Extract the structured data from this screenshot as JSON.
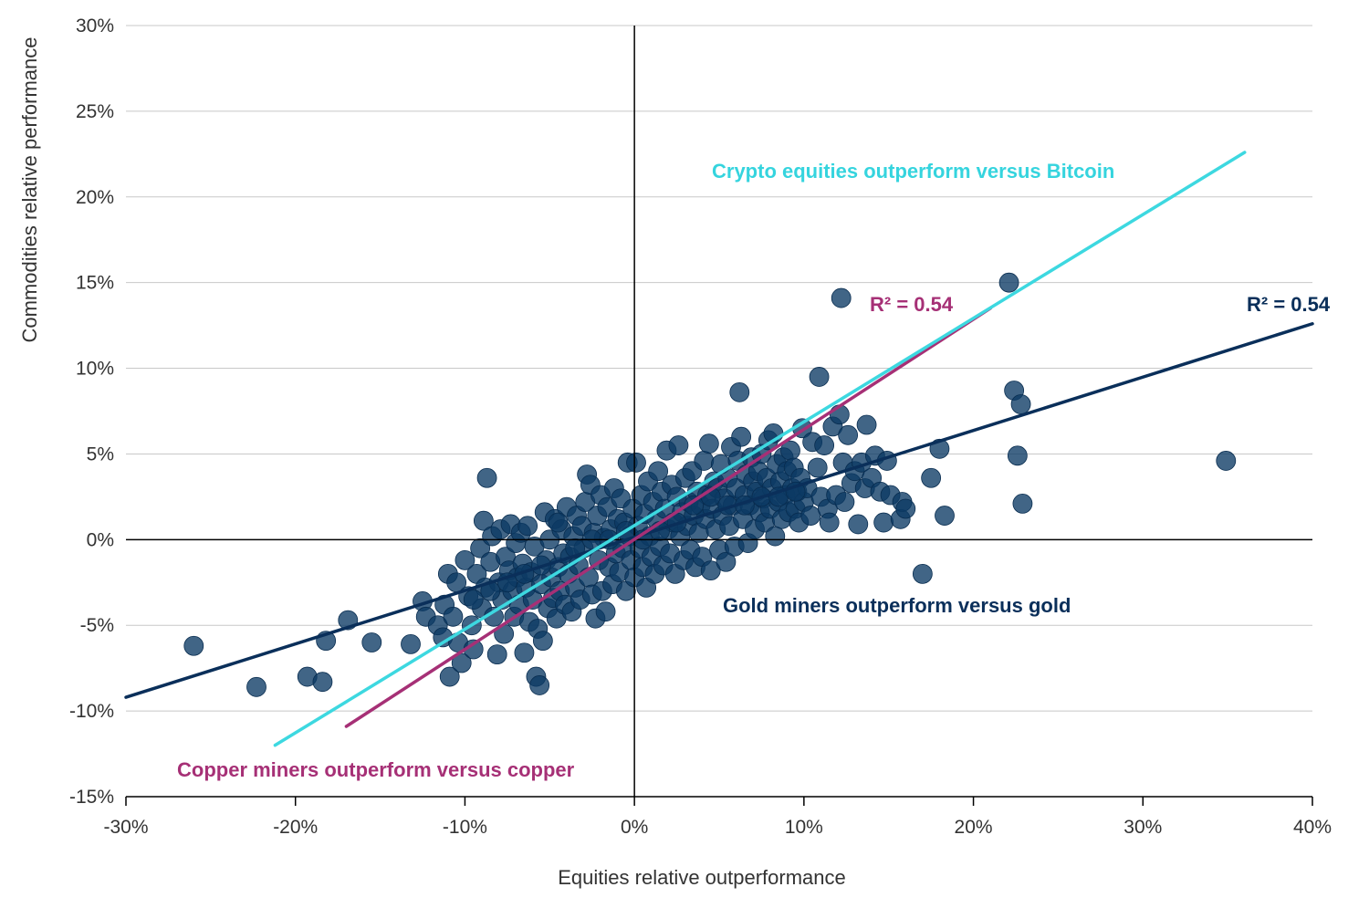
{
  "chart_data": {
    "type": "scatter",
    "xlabel": "Equities relative outperformance",
    "ylabel": "Commodities relative performance",
    "xlim": [
      -0.3,
      0.4
    ],
    "ylim": [
      -0.15,
      0.3
    ],
    "x_ticks": [
      {
        "value": -0.3,
        "label": "-30%"
      },
      {
        "value": -0.2,
        "label": "-20%"
      },
      {
        "value": -0.1,
        "label": "-10%"
      },
      {
        "value": 0.0,
        "label": "0%"
      },
      {
        "value": 0.1,
        "label": "10%"
      },
      {
        "value": 0.2,
        "label": "20%"
      },
      {
        "value": 0.3,
        "label": "30%"
      },
      {
        "value": 0.4,
        "label": "40%"
      }
    ],
    "y_ticks": [
      {
        "value": -0.15,
        "label": "-15%"
      },
      {
        "value": -0.1,
        "label": "-10%"
      },
      {
        "value": -0.05,
        "label": "-5%"
      },
      {
        "value": 0.0,
        "label": "0%"
      },
      {
        "value": 0.05,
        "label": "5%"
      },
      {
        "value": 0.1,
        "label": "10%"
      },
      {
        "value": 0.15,
        "label": "15%"
      },
      {
        "value": 0.2,
        "label": "20%"
      },
      {
        "value": 0.25,
        "label": "25%"
      },
      {
        "value": 0.3,
        "label": "30%"
      }
    ],
    "grid": "horizontal",
    "colors": {
      "points": "#0b3a64",
      "gold_line": "#0a2f5a",
      "copper_line": "#a63076",
      "crypto_line": "#3dd8e0",
      "grid": "#c8c8c8",
      "axis": "#000000"
    },
    "series": [
      {
        "kind": "scatter",
        "points": [
          [
            -0.26,
            -0.062
          ],
          [
            -0.223,
            -0.086
          ],
          [
            -0.193,
            -0.08
          ],
          [
            -0.184,
            -0.083
          ],
          [
            -0.182,
            -0.059
          ],
          [
            -0.169,
            -0.047
          ],
          [
            -0.155,
            -0.06
          ],
          [
            -0.132,
            -0.061
          ],
          [
            -0.125,
            -0.036
          ],
          [
            -0.123,
            -0.045
          ],
          [
            -0.116,
            -0.05
          ],
          [
            -0.113,
            -0.057
          ],
          [
            -0.112,
            -0.038
          ],
          [
            -0.11,
            -0.02
          ],
          [
            -0.109,
            -0.08
          ],
          [
            -0.107,
            -0.045
          ],
          [
            -0.105,
            -0.025
          ],
          [
            -0.104,
            -0.06
          ],
          [
            -0.102,
            -0.072
          ],
          [
            -0.1,
            -0.012
          ],
          [
            -0.098,
            -0.033
          ],
          [
            -0.096,
            -0.05
          ],
          [
            -0.095,
            -0.064
          ],
          [
            -0.093,
            -0.02
          ],
          [
            -0.091,
            -0.005
          ],
          [
            -0.09,
            -0.04
          ],
          [
            -0.089,
            0.011
          ],
          [
            -0.088,
            -0.028
          ],
          [
            -0.087,
            0.036
          ],
          [
            -0.085,
            -0.013
          ],
          [
            -0.084,
            0.002
          ],
          [
            -0.083,
            -0.045
          ],
          [
            -0.081,
            -0.067
          ],
          [
            -0.08,
            -0.025
          ],
          [
            -0.079,
            0.006
          ],
          [
            -0.078,
            -0.035
          ],
          [
            -0.077,
            -0.055
          ],
          [
            -0.076,
            -0.01
          ],
          [
            -0.074,
            -0.018
          ],
          [
            -0.073,
            0.009
          ],
          [
            -0.072,
            -0.03
          ],
          [
            -0.071,
            -0.045
          ],
          [
            -0.07,
            -0.002
          ],
          [
            -0.069,
            -0.022
          ],
          [
            -0.068,
            -0.038
          ],
          [
            -0.067,
            0.004
          ],
          [
            -0.066,
            -0.014
          ],
          [
            -0.065,
            -0.066
          ],
          [
            -0.064,
            -0.028
          ],
          [
            -0.063,
            0.008
          ],
          [
            -0.062,
            -0.048
          ],
          [
            -0.061,
            -0.019
          ],
          [
            -0.06,
            -0.035
          ],
          [
            -0.059,
            -0.004
          ],
          [
            -0.058,
            -0.08
          ],
          [
            -0.057,
            -0.052
          ],
          [
            -0.056,
            -0.085
          ],
          [
            -0.055,
            -0.026
          ],
          [
            -0.054,
            -0.059
          ],
          [
            -0.053,
            0.016
          ],
          [
            -0.052,
            -0.012
          ],
          [
            -0.051,
            -0.04
          ],
          [
            -0.05,
            0.0
          ],
          [
            -0.049,
            -0.022
          ],
          [
            -0.048,
            -0.034
          ],
          [
            -0.047,
            0.012
          ],
          [
            -0.046,
            -0.046
          ],
          [
            -0.045,
            -0.016
          ],
          [
            -0.044,
            -0.03
          ],
          [
            -0.043,
            0.006
          ],
          [
            -0.042,
            -0.008
          ],
          [
            -0.041,
            -0.038
          ],
          [
            -0.04,
            0.019
          ],
          [
            -0.039,
            -0.02
          ],
          [
            -0.038,
            -0.01
          ],
          [
            -0.037,
            -0.042
          ],
          [
            -0.036,
            0.002
          ],
          [
            -0.035,
            -0.028
          ],
          [
            -0.034,
            0.014
          ],
          [
            -0.033,
            -0.015
          ],
          [
            -0.032,
            -0.035
          ],
          [
            -0.031,
            0.008
          ],
          [
            -0.03,
            -0.005
          ],
          [
            -0.029,
            0.022
          ],
          [
            -0.028,
            0.038
          ],
          [
            -0.027,
            -0.022
          ],
          [
            -0.026,
            0.032
          ],
          [
            -0.025,
            -0.032
          ],
          [
            -0.024,
            0.004
          ],
          [
            -0.023,
            -0.046
          ],
          [
            -0.022,
            0.014
          ],
          [
            -0.021,
            -0.012
          ],
          [
            -0.02,
            0.026
          ],
          [
            -0.019,
            -0.03
          ],
          [
            -0.018,
            0.001
          ],
          [
            -0.017,
            -0.042
          ],
          [
            -0.016,
            0.019
          ],
          [
            -0.015,
            -0.016
          ],
          [
            -0.014,
            0.006
          ],
          [
            -0.013,
            -0.026
          ],
          [
            -0.012,
            0.03
          ],
          [
            -0.011,
            -0.008
          ],
          [
            -0.01,
            0.012
          ],
          [
            -0.009,
            -0.019
          ],
          [
            -0.008,
            0.024
          ],
          [
            -0.007,
            -0.005
          ],
          [
            -0.006,
            0.01
          ],
          [
            -0.005,
            -0.03
          ],
          [
            -0.004,
            0.045
          ],
          [
            -0.003,
            0.002
          ],
          [
            -0.002,
            -0.012
          ],
          [
            -0.001,
            0.018
          ],
          [
            0.0,
            -0.022
          ],
          [
            0.001,
            0.045
          ],
          [
            0.002,
            0.008
          ],
          [
            0.003,
            -0.005
          ],
          [
            0.004,
            0.026
          ],
          [
            0.005,
            -0.016
          ],
          [
            0.006,
            0.015
          ],
          [
            0.007,
            -0.028
          ],
          [
            0.008,
            0.034
          ],
          [
            0.009,
            0.002
          ],
          [
            0.01,
            -0.01
          ],
          [
            0.011,
            0.022
          ],
          [
            0.012,
            -0.02
          ],
          [
            0.013,
            0.012
          ],
          [
            0.014,
            0.04
          ],
          [
            0.015,
            -0.004
          ],
          [
            0.016,
            0.028
          ],
          [
            0.017,
            -0.015
          ],
          [
            0.018,
            0.018
          ],
          [
            0.019,
            0.052
          ],
          [
            0.02,
            0.006
          ],
          [
            0.021,
            -0.008
          ],
          [
            0.022,
            0.032
          ],
          [
            0.023,
            0.01
          ],
          [
            0.024,
            -0.02
          ],
          [
            0.025,
            0.025
          ],
          [
            0.026,
            0.055
          ],
          [
            0.027,
            0.002
          ],
          [
            0.028,
            0.016
          ],
          [
            0.029,
            -0.012
          ],
          [
            0.03,
            0.036
          ],
          [
            0.031,
            0.008
          ],
          [
            0.032,
            0.022
          ],
          [
            0.033,
            -0.006
          ],
          [
            0.034,
            0.04
          ],
          [
            0.035,
            0.014
          ],
          [
            0.036,
            -0.016
          ],
          [
            0.037,
            0.028
          ],
          [
            0.038,
            0.004
          ],
          [
            0.039,
            0.02
          ],
          [
            0.04,
            -0.01
          ],
          [
            0.041,
            0.046
          ],
          [
            0.042,
            0.012
          ],
          [
            0.043,
            0.026
          ],
          [
            0.044,
            0.056
          ],
          [
            0.045,
            -0.018
          ],
          [
            0.046,
            0.018
          ],
          [
            0.047,
            0.034
          ],
          [
            0.048,
            0.006
          ],
          [
            0.049,
            0.03
          ],
          [
            0.05,
            -0.006
          ],
          [
            0.051,
            0.044
          ],
          [
            0.052,
            0.014
          ],
          [
            0.053,
            0.024
          ],
          [
            0.054,
            -0.013
          ],
          [
            0.055,
            0.036
          ],
          [
            0.056,
            0.008
          ],
          [
            0.057,
            0.054
          ],
          [
            0.058,
            0.02
          ],
          [
            0.059,
            -0.004
          ],
          [
            0.06,
            0.03
          ],
          [
            0.061,
            0.046
          ],
          [
            0.062,
            0.086
          ],
          [
            0.063,
            0.06
          ],
          [
            0.064,
            0.012
          ],
          [
            0.065,
            0.026
          ],
          [
            0.066,
            0.038
          ],
          [
            0.067,
            -0.002
          ],
          [
            0.068,
            0.02
          ],
          [
            0.069,
            0.048
          ],
          [
            0.07,
            0.034
          ],
          [
            0.071,
            0.006
          ],
          [
            0.072,
            0.028
          ],
          [
            0.073,
            0.04
          ],
          [
            0.074,
            0.016
          ],
          [
            0.075,
            0.05
          ],
          [
            0.076,
            0.024
          ],
          [
            0.077,
            0.01
          ],
          [
            0.078,
            0.036
          ],
          [
            0.079,
            0.058
          ],
          [
            0.08,
            0.018
          ],
          [
            0.081,
            0.03
          ],
          [
            0.082,
            0.062
          ],
          [
            0.083,
            0.002
          ],
          [
            0.084,
            0.044
          ],
          [
            0.085,
            0.022
          ],
          [
            0.086,
            0.034
          ],
          [
            0.087,
            0.012
          ],
          [
            0.088,
            0.048
          ],
          [
            0.089,
            0.026
          ],
          [
            0.09,
            0.04
          ],
          [
            0.091,
            0.016
          ],
          [
            0.092,
            0.052
          ],
          [
            0.093,
            0.03
          ],
          [
            0.094,
            0.042
          ],
          [
            0.095,
            0.018
          ],
          [
            0.096,
            0.028
          ],
          [
            0.097,
            0.01
          ],
          [
            0.098,
            0.036
          ],
          [
            0.099,
            0.065
          ],
          [
            0.1,
            0.022
          ],
          [
            0.102,
            0.03
          ],
          [
            0.104,
            0.014
          ],
          [
            0.105,
            0.057
          ],
          [
            0.108,
            0.042
          ],
          [
            0.109,
            0.095
          ],
          [
            0.11,
            0.025
          ],
          [
            0.112,
            0.055
          ],
          [
            0.114,
            0.018
          ],
          [
            0.115,
            0.01
          ],
          [
            0.117,
            0.066
          ],
          [
            0.119,
            0.026
          ],
          [
            0.121,
            0.073
          ],
          [
            0.122,
            0.141
          ],
          [
            0.123,
            0.045
          ],
          [
            0.124,
            0.022
          ],
          [
            0.126,
            0.061
          ],
          [
            0.128,
            0.033
          ],
          [
            0.13,
            0.04
          ],
          [
            0.132,
            0.009
          ],
          [
            0.134,
            0.045
          ],
          [
            0.136,
            0.03
          ],
          [
            0.137,
            0.067
          ],
          [
            0.14,
            0.036
          ],
          [
            0.142,
            0.049
          ],
          [
            0.145,
            0.028
          ],
          [
            0.147,
            0.01
          ],
          [
            0.149,
            0.046
          ],
          [
            0.151,
            0.026
          ],
          [
            0.157,
            0.012
          ],
          [
            0.158,
            0.022
          ],
          [
            0.16,
            0.018
          ],
          [
            0.17,
            -0.02
          ],
          [
            0.175,
            0.036
          ],
          [
            0.18,
            0.053
          ],
          [
            0.183,
            0.014
          ],
          [
            0.221,
            0.15
          ],
          [
            0.224,
            0.087
          ],
          [
            0.226,
            0.049
          ],
          [
            0.228,
            0.079
          ],
          [
            0.229,
            0.021
          ],
          [
            0.349,
            0.046
          ],
          [
            -0.045,
            0.01
          ],
          [
            -0.035,
            -0.005
          ],
          [
            -0.025,
            0.0
          ],
          [
            -0.015,
            0.0
          ],
          [
            -0.005,
            0.005
          ],
          [
            0.005,
            0.0
          ],
          [
            0.015,
            0.005
          ],
          [
            0.025,
            0.01
          ],
          [
            0.035,
            0.02
          ],
          [
            0.045,
            0.025
          ],
          [
            -0.055,
            -0.015
          ],
          [
            -0.065,
            -0.02
          ],
          [
            -0.075,
            -0.025
          ],
          [
            -0.085,
            -0.03
          ],
          [
            -0.095,
            -0.035
          ],
          [
            0.055,
            0.02
          ],
          [
            0.065,
            0.02
          ],
          [
            0.075,
            0.025
          ],
          [
            0.085,
            0.025
          ],
          [
            0.095,
            0.028
          ]
        ]
      },
      {
        "name": "Gold miners outperform versus gold",
        "kind": "line",
        "x": [
          -0.3,
          0.4
        ],
        "y": [
          -0.092,
          0.126
        ],
        "r2_label": "R² = 0.54"
      },
      {
        "name": "Copper miners outperform versus copper",
        "kind": "line",
        "x": [
          -0.17,
          0.21
        ],
        "y": [
          -0.109,
          0.135
        ],
        "r2_label": "R² = 0.54"
      },
      {
        "name": "Crypto equities outperform versus Bitcoin",
        "kind": "line",
        "x": [
          -0.212,
          0.36
        ],
        "y": [
          -0.12,
          0.226
        ]
      }
    ],
    "annotations": {
      "crypto": "Crypto equities outperform versus Bitcoin",
      "gold": "Gold miners outperform versus gold",
      "copper": "Copper miners outperform versus copper",
      "gold_r2": "R² = 0.54",
      "copper_r2": "R² = 0.54"
    }
  }
}
